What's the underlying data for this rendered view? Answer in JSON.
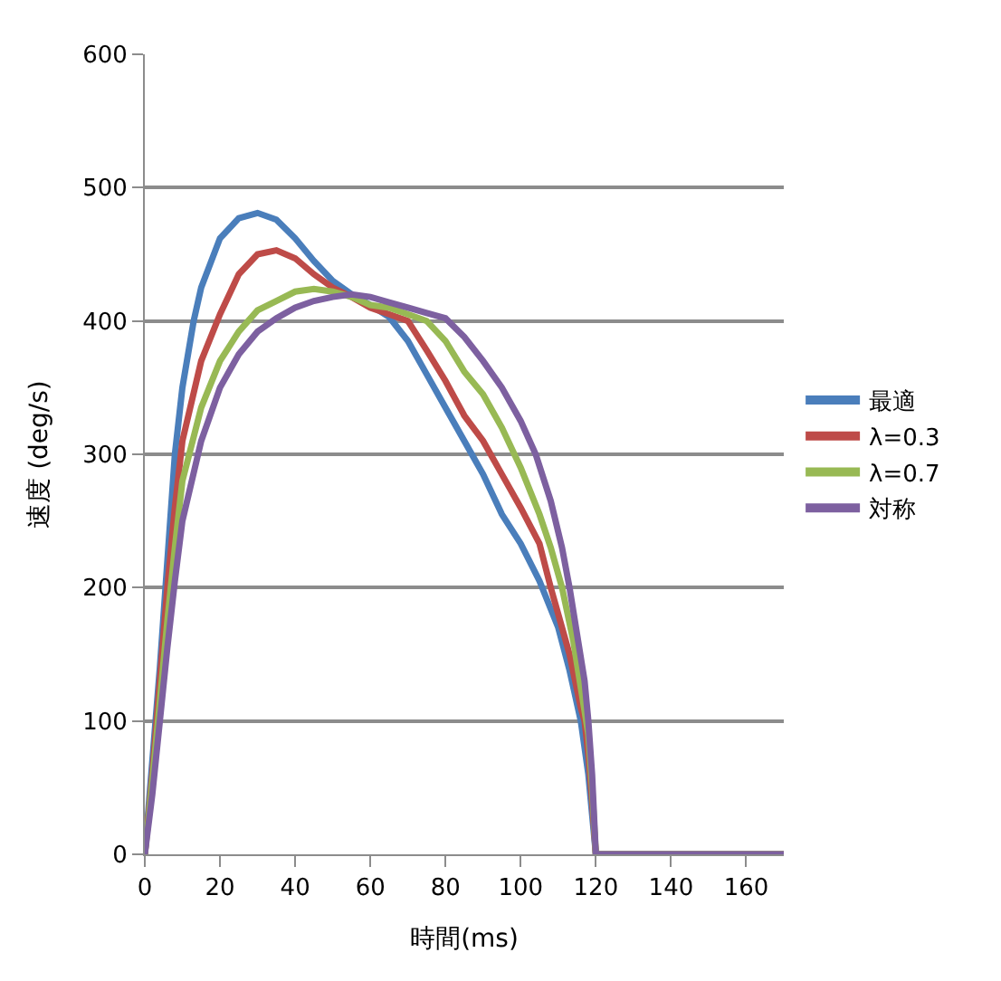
{
  "chart_data": {
    "type": "line",
    "xlabel": "時間(ms)",
    "ylabel": "速度 (deg/s)",
    "xlim": [
      0,
      170
    ],
    "xticks": [
      0,
      20,
      40,
      60,
      80,
      100,
      120,
      140,
      160
    ],
    "ylim": [
      0,
      600
    ],
    "yticks": [
      0,
      100,
      200,
      300,
      400,
      500,
      600
    ],
    "grid": "y",
    "legend": "right",
    "marker": "none",
    "line_style": "solid",
    "series": [
      {
        "name": "最適",
        "color": "#4a7ebb",
        "x": [
          0,
          2,
          4,
          6,
          8,
          10,
          13,
          15,
          20,
          25,
          30,
          35,
          40,
          45,
          50,
          55,
          60,
          65,
          70,
          75,
          80,
          85,
          90,
          95,
          100,
          105,
          110,
          113,
          116,
          118,
          119,
          120,
          170
        ],
        "values": [
          0,
          70,
          140,
          220,
          300,
          350,
          400,
          425,
          462,
          477,
          481,
          476,
          462,
          445,
          430,
          420,
          412,
          403,
          385,
          360,
          335,
          310,
          285,
          255,
          233,
          205,
          170,
          138,
          100,
          60,
          30,
          0,
          0
        ]
      },
      {
        "name": "λ=0.3",
        "color": "#be4b48",
        "x": [
          0,
          2,
          4,
          6,
          8,
          10,
          15,
          20,
          25,
          30,
          35,
          40,
          45,
          50,
          55,
          60,
          65,
          70,
          75,
          80,
          85,
          90,
          95,
          100,
          105,
          108,
          110,
          113,
          116,
          117,
          118,
          119,
          120,
          170
        ],
        "values": [
          0,
          60,
          130,
          200,
          260,
          310,
          370,
          405,
          435,
          450,
          453,
          447,
          435,
          425,
          418,
          410,
          405,
          400,
          378,
          355,
          329,
          310,
          285,
          260,
          233,
          200,
          180,
          150,
          110,
          100,
          75,
          40,
          0,
          0
        ]
      },
      {
        "name": "λ=0.7",
        "color": "#98b954",
        "x": [
          0,
          2,
          4,
          6,
          8,
          10,
          15,
          20,
          25,
          30,
          35,
          40,
          45,
          50,
          55,
          60,
          65,
          70,
          75,
          80,
          85,
          90,
          95,
          100,
          105,
          108,
          111,
          114,
          116,
          118,
          119,
          120,
          170
        ],
        "values": [
          0,
          55,
          115,
          175,
          230,
          280,
          335,
          370,
          392,
          408,
          415,
          422,
          424,
          422,
          418,
          412,
          410,
          405,
          400,
          385,
          362,
          345,
          320,
          290,
          255,
          230,
          200,
          160,
          125,
          90,
          50,
          0,
          0
        ]
      },
      {
        "name": "対称",
        "color": "#7d60a0",
        "x": [
          0,
          2,
          4,
          6,
          8,
          10,
          15,
          20,
          25,
          30,
          35,
          40,
          45,
          50,
          55,
          60,
          65,
          70,
          75,
          80,
          85,
          90,
          95,
          100,
          104,
          108,
          111,
          113,
          115,
          117,
          118,
          119,
          120,
          170
        ],
        "values": [
          0,
          45,
          100,
          155,
          205,
          250,
          310,
          350,
          375,
          392,
          402,
          410,
          415,
          418,
          420,
          418,
          414,
          410,
          406,
          402,
          388,
          370,
          350,
          325,
          300,
          265,
          230,
          200,
          165,
          130,
          100,
          60,
          0,
          0
        ]
      }
    ]
  }
}
